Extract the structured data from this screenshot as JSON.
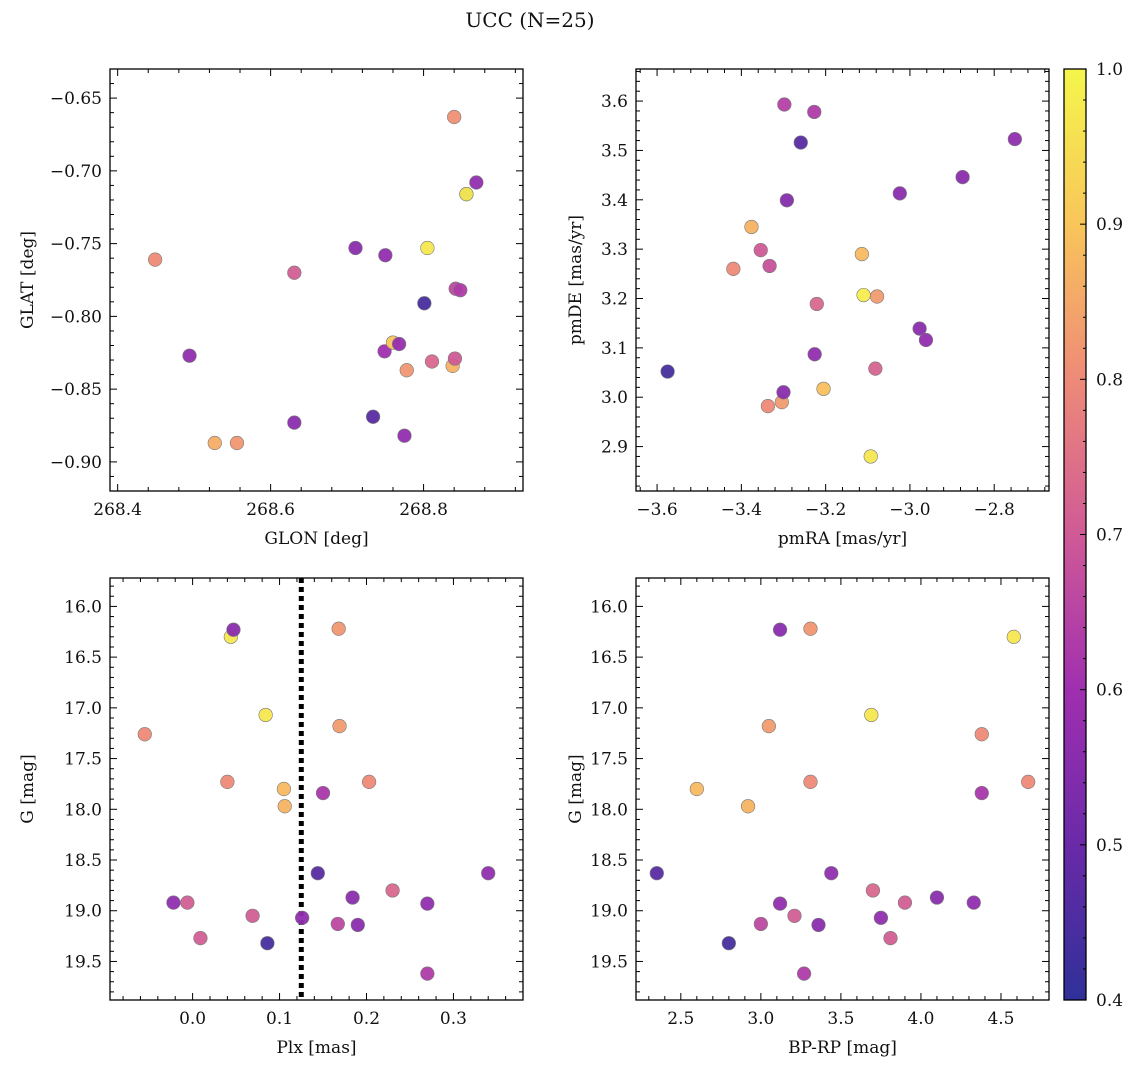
{
  "suptitle": "UCC (N=25)",
  "colorbar": {
    "range": [
      0.4,
      1.0
    ],
    "ticks": [
      "0.4",
      "0.5",
      "0.6",
      "0.7",
      "0.8",
      "0.9",
      "1.0"
    ],
    "colormap": "plasma",
    "colormap_colors": [
      "#2f3098",
      "#6a2aa8",
      "#a02fb0",
      "#cf5a96",
      "#ee8a78",
      "#f9c55a",
      "#f4f64b"
    ]
  },
  "chart_data": [
    {
      "type": "scatter",
      "xlabel": "GLON [deg]",
      "ylabel": "GLAT [deg]",
      "xlim": [
        268.39,
        268.93
      ],
      "ylim": [
        -0.92,
        -0.63
      ],
      "xticks": [
        "268.4",
        "268.6",
        "268.8"
      ],
      "yticks": [
        "−0.65",
        "−0.70",
        "−0.75",
        "−0.80",
        "−0.85",
        "−0.90"
      ],
      "points": [
        {
          "x": 268.449,
          "y": -0.761,
          "c": 0.8
        },
        {
          "x": 268.494,
          "y": -0.827,
          "c": 0.57
        },
        {
          "x": 268.527,
          "y": -0.887,
          "c": 0.86
        },
        {
          "x": 268.556,
          "y": -0.887,
          "c": 0.82
        },
        {
          "x": 268.631,
          "y": -0.77,
          "c": 0.71
        },
        {
          "x": 268.631,
          "y": -0.873,
          "c": 0.56
        },
        {
          "x": 268.711,
          "y": -0.753,
          "c": 0.56
        },
        {
          "x": 268.734,
          "y": -0.869,
          "c": 0.47
        },
        {
          "x": 268.749,
          "y": -0.824,
          "c": 0.6
        },
        {
          "x": 268.75,
          "y": -0.758,
          "c": 0.57
        },
        {
          "x": 268.76,
          "y": -0.818,
          "c": 0.9
        },
        {
          "x": 268.768,
          "y": -0.819,
          "c": 0.58
        },
        {
          "x": 268.775,
          "y": -0.882,
          "c": 0.57
        },
        {
          "x": 268.778,
          "y": -0.837,
          "c": 0.82
        },
        {
          "x": 268.801,
          "y": -0.791,
          "c": 0.44
        },
        {
          "x": 268.805,
          "y": -0.753,
          "c": 0.97
        },
        {
          "x": 268.811,
          "y": -0.831,
          "c": 0.73
        },
        {
          "x": 268.838,
          "y": -0.834,
          "c": 0.87
        },
        {
          "x": 268.84,
          "y": -0.663,
          "c": 0.81
        },
        {
          "x": 268.841,
          "y": -0.829,
          "c": 0.7
        },
        {
          "x": 268.842,
          "y": -0.781,
          "c": 0.66
        },
        {
          "x": 268.848,
          "y": -0.782,
          "c": 0.63
        },
        {
          "x": 268.856,
          "y": -0.716,
          "c": 0.53
        },
        {
          "x": 268.856,
          "y": -0.716,
          "c": 0.98
        },
        {
          "x": 268.869,
          "y": -0.708,
          "c": 0.57
        }
      ]
    },
    {
      "type": "scatter",
      "xlabel": "pmRA [mas/yr]",
      "ylabel": "pmDE [mas/yr]",
      "xlim": [
        -3.65,
        -2.67
      ],
      "ylim": [
        2.81,
        3.665
      ],
      "xticks": [
        "−3.6",
        "−3.4",
        "−3.2",
        "−3.0",
        "−2.8"
      ],
      "yticks": [
        "3.6",
        "3.5",
        "3.4",
        "3.3",
        "3.2",
        "3.1",
        "3.0",
        "2.9"
      ],
      "points": [
        {
          "x": -3.575,
          "y": 3.052,
          "c": 0.44
        },
        {
          "x": -3.419,
          "y": 3.26,
          "c": 0.8
        },
        {
          "x": -3.376,
          "y": 3.345,
          "c": 0.87
        },
        {
          "x": -3.354,
          "y": 3.298,
          "c": 0.7
        },
        {
          "x": -3.337,
          "y": 2.982,
          "c": 0.8
        },
        {
          "x": -3.333,
          "y": 3.266,
          "c": 0.68
        },
        {
          "x": -3.304,
          "y": 2.99,
          "c": 0.83
        },
        {
          "x": -3.3,
          "y": 3.01,
          "c": 0.56
        },
        {
          "x": -3.298,
          "y": 3.593,
          "c": 0.64
        },
        {
          "x": -3.292,
          "y": 3.399,
          "c": 0.55
        },
        {
          "x": -3.259,
          "y": 3.516,
          "c": 0.47
        },
        {
          "x": -3.227,
          "y": 3.578,
          "c": 0.63
        },
        {
          "x": -3.226,
          "y": 3.087,
          "c": 0.57
        },
        {
          "x": -3.221,
          "y": 3.189,
          "c": 0.73
        },
        {
          "x": -3.205,
          "y": 3.017,
          "c": 0.89
        },
        {
          "x": -3.114,
          "y": 3.29,
          "c": 0.88
        },
        {
          "x": -3.11,
          "y": 3.207,
          "c": 0.98
        },
        {
          "x": -3.093,
          "y": 2.88,
          "c": 0.97
        },
        {
          "x": -3.082,
          "y": 3.058,
          "c": 0.72
        },
        {
          "x": -3.078,
          "y": 3.204,
          "c": 0.83
        },
        {
          "x": -3.024,
          "y": 3.413,
          "c": 0.56
        },
        {
          "x": -2.977,
          "y": 3.139,
          "c": 0.56
        },
        {
          "x": -2.962,
          "y": 3.116,
          "c": 0.57
        },
        {
          "x": -2.875,
          "y": 3.446,
          "c": 0.56
        },
        {
          "x": -2.751,
          "y": 3.523,
          "c": 0.57
        }
      ]
    },
    {
      "type": "scatter",
      "xlabel": "Plx [mas]",
      "ylabel": "G [mag]",
      "xlim": [
        -0.095,
        0.38
      ],
      "ylim": [
        19.88,
        15.72
      ],
      "xticks": [
        "0.0",
        "0.1",
        "0.2",
        "0.3"
      ],
      "yticks": [
        "16.0",
        "16.5",
        "17.0",
        "17.5",
        "18.0",
        "18.5",
        "19.0",
        "19.5"
      ],
      "vline": {
        "x": 0.125,
        "style": "dotted",
        "color": "#000000"
      },
      "points": [
        {
          "x": -0.055,
          "y": 17.26,
          "c": 0.8
        },
        {
          "x": -0.022,
          "y": 18.92,
          "c": 0.57
        },
        {
          "x": -0.006,
          "y": 18.92,
          "c": 0.71
        },
        {
          "x": 0.009,
          "y": 19.27,
          "c": 0.71
        },
        {
          "x": 0.04,
          "y": 17.73,
          "c": 0.8
        },
        {
          "x": 0.044,
          "y": 16.3,
          "c": 0.97
        },
        {
          "x": 0.047,
          "y": 16.23,
          "c": 0.56
        },
        {
          "x": 0.069,
          "y": 19.05,
          "c": 0.71
        },
        {
          "x": 0.084,
          "y": 17.07,
          "c": 0.97
        },
        {
          "x": 0.086,
          "y": 19.32,
          "c": 0.44
        },
        {
          "x": 0.105,
          "y": 17.8,
          "c": 0.88
        },
        {
          "x": 0.106,
          "y": 17.97,
          "c": 0.87
        },
        {
          "x": 0.126,
          "y": 19.07,
          "c": 0.57
        },
        {
          "x": 0.144,
          "y": 18.63,
          "c": 0.47
        },
        {
          "x": 0.15,
          "y": 17.84,
          "c": 0.62
        },
        {
          "x": 0.167,
          "y": 19.13,
          "c": 0.66
        },
        {
          "x": 0.168,
          "y": 16.22,
          "c": 0.82
        },
        {
          "x": 0.169,
          "y": 17.18,
          "c": 0.83
        },
        {
          "x": 0.184,
          "y": 18.87,
          "c": 0.56
        },
        {
          "x": 0.19,
          "y": 19.14,
          "c": 0.56
        },
        {
          "x": 0.203,
          "y": 17.73,
          "c": 0.8
        },
        {
          "x": 0.23,
          "y": 18.8,
          "c": 0.73
        },
        {
          "x": 0.27,
          "y": 18.93,
          "c": 0.57
        },
        {
          "x": 0.27,
          "y": 19.62,
          "c": 0.63
        },
        {
          "x": 0.34,
          "y": 18.63,
          "c": 0.57
        }
      ]
    },
    {
      "type": "scatter",
      "xlabel": "BP-RP [mag]",
      "ylabel": "G [mag]",
      "xlim": [
        2.22,
        4.8
      ],
      "ylim": [
        19.88,
        15.72
      ],
      "xticks": [
        "2.5",
        "3.0",
        "3.5",
        "4.0",
        "4.5"
      ],
      "yticks": [
        "16.0",
        "16.5",
        "17.0",
        "17.5",
        "18.0",
        "18.5",
        "19.0",
        "19.5"
      ],
      "points": [
        {
          "x": 2.35,
          "y": 18.63,
          "c": 0.47
        },
        {
          "x": 2.6,
          "y": 17.8,
          "c": 0.88
        },
        {
          "x": 2.8,
          "y": 19.32,
          "c": 0.44
        },
        {
          "x": 2.92,
          "y": 17.97,
          "c": 0.87
        },
        {
          "x": 3.0,
          "y": 19.13,
          "c": 0.66
        },
        {
          "x": 3.05,
          "y": 17.18,
          "c": 0.83
        },
        {
          "x": 3.12,
          "y": 16.23,
          "c": 0.56
        },
        {
          "x": 3.12,
          "y": 18.93,
          "c": 0.57
        },
        {
          "x": 3.21,
          "y": 19.05,
          "c": 0.71
        },
        {
          "x": 3.27,
          "y": 19.62,
          "c": 0.63
        },
        {
          "x": 3.31,
          "y": 16.22,
          "c": 0.82
        },
        {
          "x": 3.31,
          "y": 17.73,
          "c": 0.8
        },
        {
          "x": 3.36,
          "y": 19.14,
          "c": 0.56
        },
        {
          "x": 3.44,
          "y": 18.63,
          "c": 0.57
        },
        {
          "x": 3.69,
          "y": 17.07,
          "c": 0.97
        },
        {
          "x": 3.7,
          "y": 18.8,
          "c": 0.73
        },
        {
          "x": 3.75,
          "y": 19.07,
          "c": 0.57
        },
        {
          "x": 3.81,
          "y": 19.27,
          "c": 0.71
        },
        {
          "x": 3.9,
          "y": 18.92,
          "c": 0.71
        },
        {
          "x": 4.1,
          "y": 18.87,
          "c": 0.56
        },
        {
          "x": 4.33,
          "y": 18.92,
          "c": 0.57
        },
        {
          "x": 4.38,
          "y": 17.26,
          "c": 0.8
        },
        {
          "x": 4.38,
          "y": 17.84,
          "c": 0.62
        },
        {
          "x": 4.58,
          "y": 16.3,
          "c": 0.97
        },
        {
          "x": 4.67,
          "y": 17.73,
          "c": 0.8
        }
      ]
    }
  ]
}
